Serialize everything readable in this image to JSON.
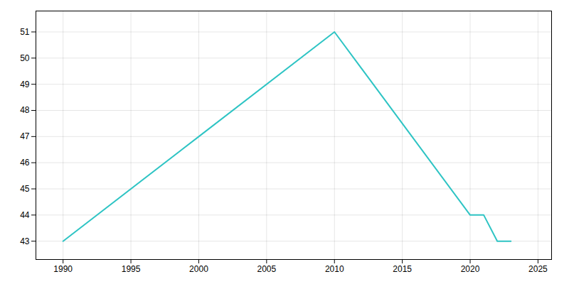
{
  "chart_data": {
    "type": "line",
    "x": [
      1990,
      2000,
      2010,
      2020,
      2021,
      2022,
      2023
    ],
    "values": [
      43,
      47,
      51,
      44,
      44,
      43,
      43
    ],
    "color": "#2EC4C4",
    "xlim": [
      1988,
      2026
    ],
    "ylim": [
      42.3,
      51.8
    ],
    "xticks": [
      1990,
      1995,
      2000,
      2005,
      2010,
      2015,
      2020,
      2025
    ],
    "yticks": [
      43,
      44,
      45,
      46,
      47,
      48,
      49,
      50,
      51
    ],
    "grid": true
  }
}
